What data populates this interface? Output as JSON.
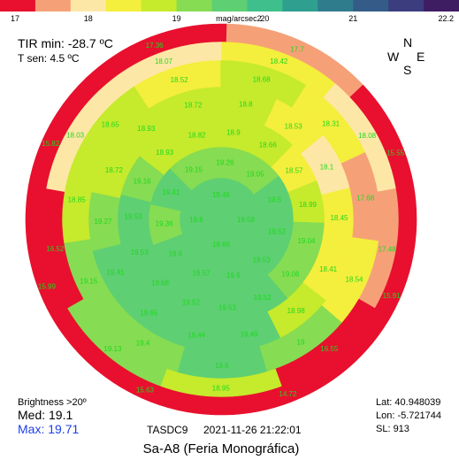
{
  "colorbar": {
    "unit": "mag/arcsec2",
    "min": 17,
    "max": 22.2,
    "tick_labels": [
      {
        "value": 17,
        "label": "17"
      },
      {
        "value": 18,
        "label": "18"
      },
      {
        "value": 19,
        "label": "19"
      },
      {
        "value": 20,
        "label": "20"
      },
      {
        "value": 21,
        "label": "21"
      },
      {
        "value": 22.2,
        "label": "22.2"
      }
    ],
    "colors": [
      "#e8102e",
      "#f6a078",
      "#fde7a6",
      "#f4ee3c",
      "#c6ea2c",
      "#86dc52",
      "#5ecf73",
      "#3fbf8b",
      "#2f9f8f",
      "#2f7c8d",
      "#355c89",
      "#3b3d7f",
      "#3f1d63"
    ]
  },
  "header": {
    "tir_text": "TIR min: -28.7 ºC",
    "tsen_text": "T sen: 4.5 ºC"
  },
  "compass": {
    "north": "N",
    "west": "W",
    "east": "E",
    "south": "S"
  },
  "sky_map": {
    "value_color": "#1fd81f",
    "rings": [
      {
        "values": [
          "19.46",
          "19.58",
          "19.66",
          "19.6"
        ]
      },
      {
        "values": [
          "19.26",
          "19.05",
          "19.5",
          "19.52",
          "19.53",
          "19.6",
          "19.57",
          "19.6",
          "19.36",
          "19.41",
          "19.15"
        ]
      },
      {
        "values": [
          "18.9",
          "18.66",
          "18.57",
          "18.99",
          "19.04",
          "19.06",
          "19.52",
          "19.53",
          "19.52",
          "19.68",
          "19.53",
          "19.53",
          "19.16",
          "18.93",
          "18.82"
        ]
      },
      {
        "values": [
          "18.8",
          "18.53",
          "18.1",
          "18.45",
          "18.41",
          "18.98",
          "19.49",
          "19.44",
          "19.65",
          "19.41",
          "19.27",
          "18.72",
          "18.93",
          "18.72"
        ]
      },
      {
        "values": [
          "18.68",
          "18.31",
          "17.68",
          "18.54",
          "19",
          "19.6",
          "19.4",
          "19.15",
          "18.85",
          "18.65",
          "18.52"
        ]
      },
      {
        "values": [
          "18.42",
          "18.08",
          "17.48",
          "16.55",
          "18.95",
          "19.13",
          "16.52",
          "18.03",
          "18.07"
        ]
      },
      {
        "values": [
          "17.7",
          "15.55",
          "15.91",
          "14.72",
          "15.63",
          "15.99",
          "15.82",
          "17.36"
        ]
      }
    ]
  },
  "stats": {
    "brightness_label": "Brightness >20º",
    "med_text": "Med: 19.1",
    "max_text": "Max: 19.71",
    "max_color": "#1f3fe6"
  },
  "footer": {
    "device": "TASDC9",
    "datetime": "2021-11-26   21:22:01",
    "lat": "Lat: 40.948039",
    "lon": "Lon: -5.721744",
    "sl": "SL:  913",
    "location": "Sa-A8 (Feria Monográfica)"
  }
}
